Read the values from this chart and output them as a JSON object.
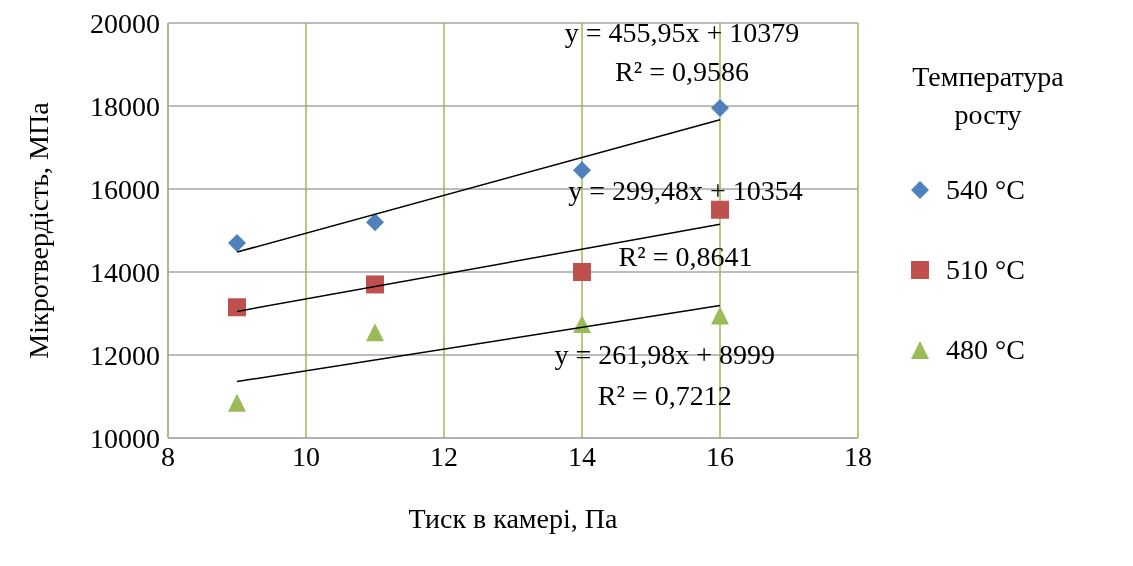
{
  "chart_data": {
    "type": "scatter",
    "xlabel": "Тиск в камері, Па",
    "ylabel": "Мікротвердість, МПа",
    "legend_title": "Температура росту",
    "legend": "right",
    "grid": true,
    "xlim": [
      8,
      18
    ],
    "xticks": [
      8,
      10,
      12,
      14,
      16,
      18
    ],
    "ylim": [
      10000,
      20000
    ],
    "yticks": [
      10000,
      12000,
      14000,
      16000,
      18000,
      20000
    ],
    "series": [
      {
        "name": "540 °C",
        "color": "#4f81bd",
        "marker": "diamond",
        "x": [
          9,
          11,
          14,
          16
        ],
        "values": [
          14700,
          15200,
          16450,
          17950
        ]
      },
      {
        "name": "510 °C",
        "color": "#c0504d",
        "marker": "square",
        "x": [
          9,
          11,
          14,
          16
        ],
        "values": [
          13150,
          13700,
          14000,
          15500
        ]
      },
      {
        "name": "480 °C",
        "color": "#9bbb59",
        "marker": "triangle",
        "x": [
          9,
          11,
          14,
          16
        ],
        "values": [
          10850,
          12550,
          12750,
          12950
        ]
      },
      {
        "type": "line",
        "color": "#000000",
        "x": [
          9,
          16
        ],
        "values": [
          14480,
          17670
        ]
      },
      {
        "type": "line",
        "color": "#000000",
        "x": [
          9,
          16
        ],
        "values": [
          13050,
          15150
        ]
      },
      {
        "type": "line",
        "color": "#000000",
        "x": [
          9,
          16
        ],
        "values": [
          11360,
          13190
        ]
      }
    ],
    "annotations": [
      "y = 455,95x + 10379",
      "R² = 0,9586",
      "y = 299,48x + 10354",
      "R² = 0,8641",
      "y = 261,98x + 8999",
      "R² = 0,7212"
    ]
  }
}
